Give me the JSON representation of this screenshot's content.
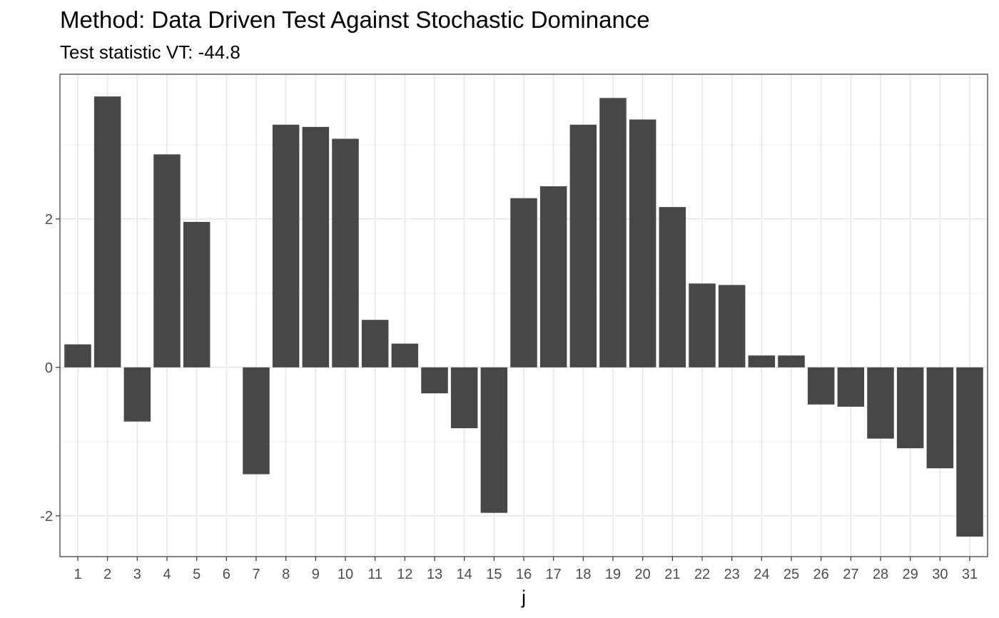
{
  "chart_data": {
    "type": "bar",
    "title": "Method: Data Driven Test Against Stochastic Dominance",
    "subtitle": "Test statistic VT: -44.8",
    "xlabel": "j",
    "ylabel": "",
    "categories": [
      "1",
      "2",
      "3",
      "4",
      "5",
      "6",
      "7",
      "8",
      "9",
      "10",
      "11",
      "12",
      "13",
      "14",
      "15",
      "16",
      "17",
      "18",
      "19",
      "20",
      "21",
      "22",
      "23",
      "24",
      "25",
      "26",
      "27",
      "28",
      "29",
      "30",
      "31"
    ],
    "values": [
      0.31,
      3.65,
      -0.73,
      2.87,
      1.96,
      0.0,
      -1.44,
      3.27,
      3.24,
      3.08,
      0.64,
      0.32,
      -0.35,
      -0.82,
      -1.96,
      2.28,
      2.44,
      3.27,
      3.63,
      3.34,
      2.16,
      1.13,
      1.11,
      0.16,
      0.16,
      -0.5,
      -0.53,
      -0.96,
      -1.09,
      -1.36,
      -2.28
    ],
    "yticks": [
      -2,
      0,
      2
    ],
    "ytick_labels": [
      "-2",
      "0",
      "2"
    ],
    "ylim": [
      -2.55,
      3.95
    ],
    "grid": true,
    "theme": "bw",
    "colors": {
      "bar": "#474747",
      "grid_major": "#ebebeb",
      "grid_minor": "#f5f5f5",
      "panel_border": "#333333",
      "tick_text": "#4d4d4d",
      "tick_line": "#333333",
      "background": "#ffffff"
    }
  }
}
